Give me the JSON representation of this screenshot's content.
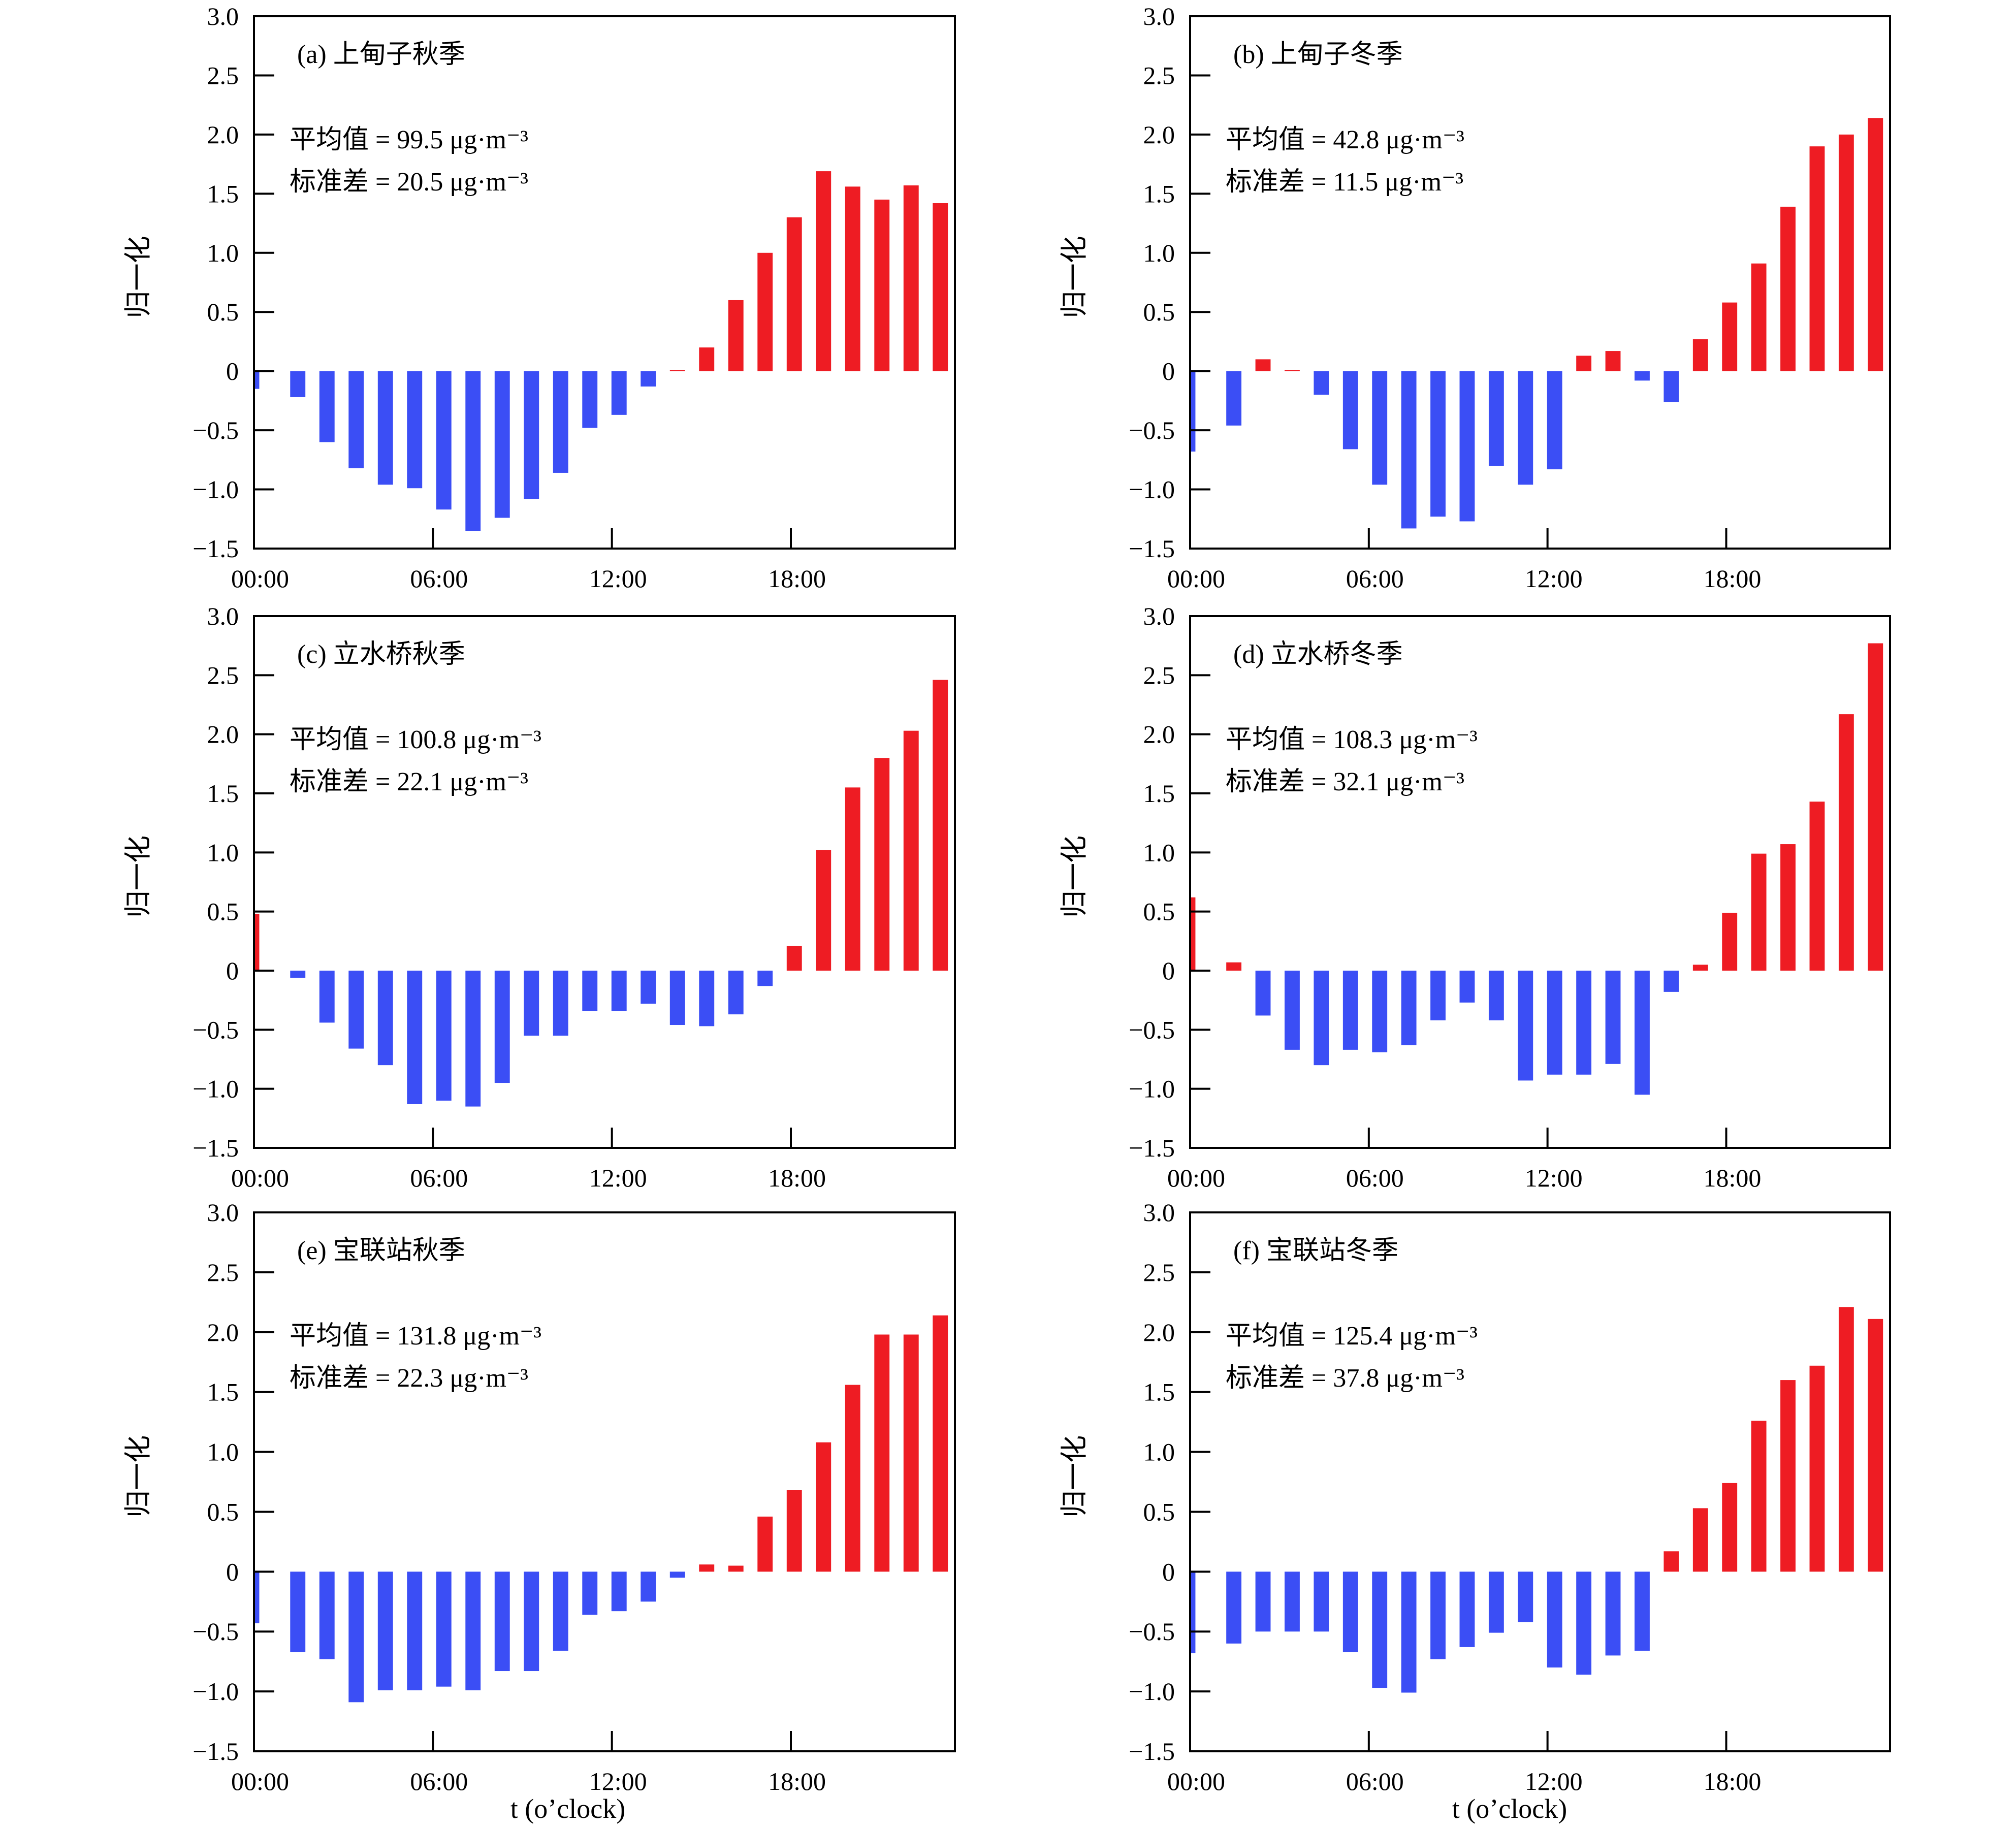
{
  "figure": {
    "xlabel": "t (o’clock)",
    "colors": {
      "positive": "#ee1c23",
      "negative": "#3b4ef5"
    }
  },
  "chart_data": [
    {
      "type": "bar",
      "panel_label": "(a) 上甸子秋季",
      "stats": [
        "平均值 = 99.5 μg·m⁻³",
        "标准差 = 20.5 μg·m⁻³"
      ],
      "ylabel": "归一化",
      "ylim": [
        -1.5,
        3.0
      ],
      "yticks": [
        "3.0",
        "2.5",
        "2.0",
        "1.5",
        "1.0",
        "0.5",
        "0",
        "−0.5",
        "−1.0",
        "−1.5"
      ],
      "xticks": [
        "00:00",
        "06:00",
        "12:00",
        "18:00"
      ],
      "x": [
        0,
        1,
        2,
        3,
        4,
        5,
        6,
        7,
        8,
        9,
        10,
        11,
        12,
        13,
        14,
        15,
        16,
        17,
        18,
        19,
        20,
        21,
        22,
        23
      ],
      "values": [
        -0.15,
        -0.22,
        -0.6,
        -0.82,
        -0.96,
        -0.99,
        -1.17,
        -1.35,
        -1.24,
        -1.08,
        -0.86,
        -0.48,
        -0.37,
        -0.13,
        0.01,
        0.2,
        0.6,
        1.0,
        1.3,
        1.69,
        1.56,
        1.45,
        1.57,
        1.42
      ]
    },
    {
      "type": "bar",
      "panel_label": "(b) 上甸子冬季",
      "stats": [
        "平均值 = 42.8 μg·m⁻³",
        "标准差 = 11.5 μg·m⁻³"
      ],
      "ylabel": "归一化",
      "ylim": [
        -1.5,
        3.0
      ],
      "yticks": [
        "3.0",
        "2.5",
        "2.0",
        "1.5",
        "1.0",
        "0.5",
        "0",
        "−0.5",
        "−1.0",
        "−1.5"
      ],
      "xticks": [
        "00:00",
        "06:00",
        "12:00",
        "18:00"
      ],
      "x": [
        0,
        1,
        2,
        3,
        4,
        5,
        6,
        7,
        8,
        9,
        10,
        11,
        12,
        13,
        14,
        15,
        16,
        17,
        18,
        19,
        20,
        21,
        22,
        23
      ],
      "values": [
        -0.68,
        -0.46,
        0.1,
        0.01,
        -0.2,
        -0.66,
        -0.96,
        -1.33,
        -1.23,
        -1.27,
        -0.8,
        -0.96,
        -0.83,
        0.13,
        0.17,
        -0.08,
        -0.26,
        0.27,
        0.58,
        0.91,
        1.39,
        1.9,
        2.0,
        2.14
      ]
    },
    {
      "type": "bar",
      "panel_label": "(c) 立水桥秋季",
      "stats": [
        "平均值 = 100.8 μg·m⁻³",
        "标准差 = 22.1 μg·m⁻³"
      ],
      "ylabel": "归一化",
      "ylim": [
        -1.5,
        3.0
      ],
      "yticks": [
        "3.0",
        "2.5",
        "2.0",
        "1.5",
        "1.0",
        "0.5",
        "0",
        "−0.5",
        "−1.0",
        "−1.5"
      ],
      "xticks": [
        "00:00",
        "06:00",
        "12:00",
        "18:00"
      ],
      "x": [
        0,
        1,
        2,
        3,
        4,
        5,
        6,
        7,
        8,
        9,
        10,
        11,
        12,
        13,
        14,
        15,
        16,
        17,
        18,
        19,
        20,
        21,
        22,
        23
      ],
      "values": [
        0.48,
        -0.06,
        -0.44,
        -0.66,
        -0.8,
        -1.13,
        -1.1,
        -1.15,
        -0.95,
        -0.55,
        -0.55,
        -0.34,
        -0.34,
        -0.28,
        -0.46,
        -0.47,
        -0.37,
        -0.13,
        0.21,
        1.02,
        1.55,
        1.8,
        2.03,
        2.46
      ]
    },
    {
      "type": "bar",
      "panel_label": "(d) 立水桥冬季",
      "stats": [
        "平均值 = 108.3 μg·m⁻³",
        "标准差 = 32.1 μg·m⁻³"
      ],
      "ylabel": "归一化",
      "ylim": [
        -1.5,
        3.0
      ],
      "yticks": [
        "3.0",
        "2.5",
        "2.0",
        "1.5",
        "1.0",
        "0.5",
        "0",
        "−0.5",
        "−1.0",
        "−1.5"
      ],
      "xticks": [
        "00:00",
        "06:00",
        "12:00",
        "18:00"
      ],
      "x": [
        0,
        1,
        2,
        3,
        4,
        5,
        6,
        7,
        8,
        9,
        10,
        11,
        12,
        13,
        14,
        15,
        16,
        17,
        18,
        19,
        20,
        21,
        22,
        23
      ],
      "values": [
        0.62,
        0.07,
        -0.38,
        -0.67,
        -0.8,
        -0.67,
        -0.69,
        -0.63,
        -0.42,
        -0.27,
        -0.42,
        -0.93,
        -0.88,
        -0.88,
        -0.79,
        -1.05,
        -0.18,
        0.05,
        0.49,
        0.99,
        1.07,
        1.43,
        2.17,
        2.77
      ]
    },
    {
      "type": "bar",
      "panel_label": "(e) 宝联站秋季",
      "stats": [
        "平均值 = 131.8 μg·m⁻³",
        "标准差 = 22.3 μg·m⁻³"
      ],
      "ylabel": "归一化",
      "ylim": [
        -1.5,
        3.0
      ],
      "yticks": [
        "3.0",
        "2.5",
        "2.0",
        "1.5",
        "1.0",
        "0.5",
        "0",
        "−0.5",
        "−1.0",
        "−1.5"
      ],
      "xticks": [
        "00:00",
        "06:00",
        "12:00",
        "18:00"
      ],
      "x": [
        0,
        1,
        2,
        3,
        4,
        5,
        6,
        7,
        8,
        9,
        10,
        11,
        12,
        13,
        14,
        15,
        16,
        17,
        18,
        19,
        20,
        21,
        22,
        23
      ],
      "values": [
        -0.43,
        -0.67,
        -0.73,
        -1.09,
        -0.99,
        -0.99,
        -0.96,
        -0.99,
        -0.83,
        -0.83,
        -0.66,
        -0.36,
        -0.33,
        -0.25,
        -0.05,
        0.06,
        0.05,
        0.46,
        0.68,
        1.08,
        1.56,
        1.98,
        1.98,
        2.14
      ]
    },
    {
      "type": "bar",
      "panel_label": "(f) 宝联站冬季",
      "stats": [
        "平均值 = 125.4 μg·m⁻³",
        "标准差 = 37.8 μg·m⁻³"
      ],
      "ylabel": "归一化",
      "ylim": [
        -1.5,
        3.0
      ],
      "yticks": [
        "3.0",
        "2.5",
        "2.0",
        "1.5",
        "1.0",
        "0.5",
        "0",
        "−0.5",
        "−1.0",
        "−1.5"
      ],
      "xticks": [
        "00:00",
        "06:00",
        "12:00",
        "18:00"
      ],
      "x": [
        0,
        1,
        2,
        3,
        4,
        5,
        6,
        7,
        8,
        9,
        10,
        11,
        12,
        13,
        14,
        15,
        16,
        17,
        18,
        19,
        20,
        21,
        22,
        23
      ],
      "values": [
        -0.68,
        -0.6,
        -0.5,
        -0.5,
        -0.5,
        -0.67,
        -0.97,
        -1.01,
        -0.73,
        -0.63,
        -0.51,
        -0.42,
        -0.8,
        -0.86,
        -0.7,
        -0.66,
        0.17,
        0.53,
        0.74,
        1.26,
        1.6,
        1.72,
        2.21,
        2.11
      ]
    }
  ]
}
